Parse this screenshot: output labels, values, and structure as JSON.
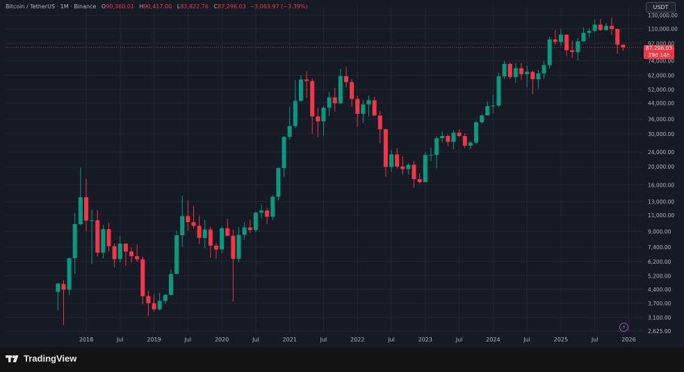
{
  "legend": {
    "title": "Bitcoin / TetherUS · 1M · Binance",
    "open_label": "O",
    "open": "90,360.01",
    "high_label": "H",
    "high": "90,417.00",
    "low_label": "L",
    "low": "83,822.76",
    "close_label": "C",
    "close": "87,296.03",
    "change": "−3,063.97 (−3.39%)"
  },
  "currency": "USDT",
  "price_tag": {
    "price": "87,296.03",
    "countdown": "29d 14h"
  },
  "brand": {
    "name": "TradingView"
  },
  "icons": {
    "flash": "flash-icon",
    "logo": "tradingview-logo-icon"
  },
  "colors": {
    "up": "#089981",
    "down": "#f23645",
    "background": "#161a25",
    "grid": "#232733",
    "text": "#b2b5be"
  },
  "chart_data": {
    "type": "candlestick",
    "scale": "log",
    "ylim": [
      2500,
      145000
    ],
    "grid": true,
    "y_ticks": [
      "130,000.00",
      "110,000.00",
      "92,000.00",
      "74,000.00",
      "62,000.00",
      "52,000.00",
      "44,000.00",
      "36,000.00",
      "30,000.00",
      "24,000.00",
      "20,000.00",
      "16,000.00",
      "13,000.00",
      "11,000.00",
      "9,000.00",
      "7,400.00",
      "6,200.00",
      "5,200.00",
      "4,400.00",
      "3,700.00",
      "3,100.00",
      "2,625.00"
    ],
    "x_ticks": [
      "2018",
      "Jul",
      "2019",
      "Jul",
      "2020",
      "Jul",
      "2021",
      "Jul",
      "2022",
      "Jul",
      "2023",
      "Jul",
      "2024",
      "Jul",
      "2025",
      "Jul",
      "2026"
    ],
    "last_price": 87296.03,
    "candles": [
      {
        "t": "2017-08",
        "o": 4261,
        "h": 4745,
        "l": 3400,
        "c": 4724
      },
      {
        "t": "2017-09",
        "o": 4690,
        "h": 4940,
        "l": 2817,
        "c": 4378
      },
      {
        "t": "2017-10",
        "o": 4378,
        "h": 6470,
        "l": 4110,
        "c": 6463
      },
      {
        "t": "2017-11",
        "o": 6463,
        "h": 11300,
        "l": 5325,
        "c": 9838
      },
      {
        "t": "2017-12",
        "o": 9838,
        "h": 19798,
        "l": 9722,
        "c": 13716
      },
      {
        "t": "2018-01",
        "o": 13716,
        "h": 17176,
        "l": 9035,
        "c": 10285
      },
      {
        "t": "2018-02",
        "o": 10285,
        "h": 11786,
        "l": 6000,
        "c": 10326
      },
      {
        "t": "2018-03",
        "o": 10326,
        "h": 11690,
        "l": 6600,
        "c": 6923
      },
      {
        "t": "2018-04",
        "o": 6923,
        "h": 9759,
        "l": 6430,
        "c": 9246
      },
      {
        "t": "2018-05",
        "o": 9246,
        "h": 10020,
        "l": 7032,
        "c": 7494
      },
      {
        "t": "2018-06",
        "o": 7494,
        "h": 7760,
        "l": 5755,
        "c": 6391
      },
      {
        "t": "2018-07",
        "o": 6391,
        "h": 8507,
        "l": 6111,
        "c": 7730
      },
      {
        "t": "2018-08",
        "o": 7730,
        "h": 7770,
        "l": 5880,
        "c": 7011
      },
      {
        "t": "2018-09",
        "o": 7011,
        "h": 7410,
        "l": 6100,
        "c": 6626
      },
      {
        "t": "2018-10",
        "o": 6626,
        "h": 7680,
        "l": 6180,
        "c": 6371
      },
      {
        "t": "2018-11",
        "o": 6371,
        "h": 6560,
        "l": 3652,
        "c": 4041
      },
      {
        "t": "2018-12",
        "o": 4041,
        "h": 4312,
        "l": 3156,
        "c": 3702
      },
      {
        "t": "2019-01",
        "o": 3702,
        "h": 4143,
        "l": 3349,
        "c": 3434
      },
      {
        "t": "2019-02",
        "o": 3434,
        "h": 4198,
        "l": 3373,
        "c": 3813
      },
      {
        "t": "2019-03",
        "o": 3813,
        "h": 4140,
        "l": 3670,
        "c": 4105
      },
      {
        "t": "2019-04",
        "o": 4105,
        "h": 5600,
        "l": 4070,
        "c": 5320
      },
      {
        "t": "2019-05",
        "o": 5320,
        "h": 9074,
        "l": 5300,
        "c": 8574
      },
      {
        "t": "2019-06",
        "o": 8574,
        "h": 13970,
        "l": 7440,
        "c": 10854
      },
      {
        "t": "2019-07",
        "o": 10854,
        "h": 13183,
        "l": 9071,
        "c": 10085
      },
      {
        "t": "2019-08",
        "o": 10085,
        "h": 12325,
        "l": 9320,
        "c": 9630
      },
      {
        "t": "2019-09",
        "o": 9630,
        "h": 10905,
        "l": 7710,
        "c": 8293
      },
      {
        "t": "2019-10",
        "o": 8293,
        "h": 10370,
        "l": 7300,
        "c": 9199
      },
      {
        "t": "2019-11",
        "o": 9199,
        "h": 9505,
        "l": 6515,
        "c": 7546
      },
      {
        "t": "2019-12",
        "o": 7546,
        "h": 7750,
        "l": 6435,
        "c": 7195
      },
      {
        "t": "2020-01",
        "o": 7195,
        "h": 9578,
        "l": 6871,
        "c": 9352
      },
      {
        "t": "2020-02",
        "o": 9352,
        "h": 10500,
        "l": 8445,
        "c": 8523
      },
      {
        "t": "2020-03",
        "o": 8523,
        "h": 9189,
        "l": 3782,
        "c": 6411
      },
      {
        "t": "2020-04",
        "o": 6411,
        "h": 9460,
        "l": 6150,
        "c": 8620
      },
      {
        "t": "2020-05",
        "o": 8620,
        "h": 10067,
        "l": 8107,
        "c": 9449
      },
      {
        "t": "2020-06",
        "o": 9449,
        "h": 10380,
        "l": 8833,
        "c": 9138
      },
      {
        "t": "2020-07",
        "o": 9138,
        "h": 11444,
        "l": 8893,
        "c": 11335
      },
      {
        "t": "2020-08",
        "o": 11335,
        "h": 12468,
        "l": 10518,
        "c": 11649
      },
      {
        "t": "2020-09",
        "o": 11649,
        "h": 12050,
        "l": 9825,
        "c": 10776
      },
      {
        "t": "2020-10",
        "o": 10776,
        "h": 14100,
        "l": 10374,
        "c": 13791
      },
      {
        "t": "2020-11",
        "o": 13791,
        "h": 19863,
        "l": 13195,
        "c": 19695
      },
      {
        "t": "2020-12",
        "o": 19695,
        "h": 29300,
        "l": 17572,
        "c": 28923
      },
      {
        "t": "2021-01",
        "o": 28923,
        "h": 41950,
        "l": 28130,
        "c": 33092
      },
      {
        "t": "2021-02",
        "o": 33092,
        "h": 58352,
        "l": 32296,
        "c": 45135
      },
      {
        "t": "2021-03",
        "o": 45135,
        "h": 61844,
        "l": 44950,
        "c": 58740
      },
      {
        "t": "2021-04",
        "o": 58740,
        "h": 64854,
        "l": 46930,
        "c": 57694
      },
      {
        "t": "2021-05",
        "o": 57694,
        "h": 59500,
        "l": 30000,
        "c": 37254
      },
      {
        "t": "2021-06",
        "o": 37254,
        "h": 41330,
        "l": 28805,
        "c": 35045
      },
      {
        "t": "2021-07",
        "o": 35045,
        "h": 42448,
        "l": 29278,
        "c": 41461
      },
      {
        "t": "2021-08",
        "o": 41461,
        "h": 50500,
        "l": 37332,
        "c": 47100
      },
      {
        "t": "2021-09",
        "o": 47100,
        "h": 52920,
        "l": 39600,
        "c": 43824
      },
      {
        "t": "2021-10",
        "o": 43824,
        "h": 67000,
        "l": 43283,
        "c": 61299
      },
      {
        "t": "2021-11",
        "o": 61299,
        "h": 69000,
        "l": 53256,
        "c": 56950
      },
      {
        "t": "2021-12",
        "o": 56950,
        "h": 59053,
        "l": 42000,
        "c": 46217
      },
      {
        "t": "2022-01",
        "o": 46217,
        "h": 47990,
        "l": 32917,
        "c": 38466
      },
      {
        "t": "2022-02",
        "o": 38466,
        "h": 45821,
        "l": 34322,
        "c": 43160
      },
      {
        "t": "2022-03",
        "o": 43160,
        "h": 48190,
        "l": 37155,
        "c": 45510
      },
      {
        "t": "2022-04",
        "o": 45510,
        "h": 47444,
        "l": 37578,
        "c": 37630
      },
      {
        "t": "2022-05",
        "o": 37630,
        "h": 39845,
        "l": 26700,
        "c": 31801
      },
      {
        "t": "2022-06",
        "o": 31801,
        "h": 31982,
        "l": 17622,
        "c": 19942
      },
      {
        "t": "2022-07",
        "o": 19942,
        "h": 24668,
        "l": 18782,
        "c": 23293
      },
      {
        "t": "2022-08",
        "o": 23293,
        "h": 25212,
        "l": 19520,
        "c": 20050
      },
      {
        "t": "2022-09",
        "o": 20050,
        "h": 22799,
        "l": 18125,
        "c": 19423
      },
      {
        "t": "2022-10",
        "o": 19423,
        "h": 20988,
        "l": 18190,
        "c": 20490
      },
      {
        "t": "2022-11",
        "o": 20490,
        "h": 21480,
        "l": 15476,
        "c": 17164
      },
      {
        "t": "2022-12",
        "o": 17164,
        "h": 18387,
        "l": 16256,
        "c": 16542
      },
      {
        "t": "2023-01",
        "o": 16542,
        "h": 23960,
        "l": 16500,
        "c": 23125
      },
      {
        "t": "2023-02",
        "o": 23125,
        "h": 25250,
        "l": 21351,
        "c": 23141
      },
      {
        "t": "2023-03",
        "o": 23141,
        "h": 29184,
        "l": 19549,
        "c": 28465
      },
      {
        "t": "2023-04",
        "o": 28465,
        "h": 31000,
        "l": 26942,
        "c": 29233
      },
      {
        "t": "2023-05",
        "o": 29233,
        "h": 29820,
        "l": 25811,
        "c": 27210
      },
      {
        "t": "2023-06",
        "o": 27210,
        "h": 31431,
        "l": 24800,
        "c": 30472
      },
      {
        "t": "2023-07",
        "o": 30472,
        "h": 31804,
        "l": 28861,
        "c": 29232
      },
      {
        "t": "2023-08",
        "o": 29232,
        "h": 30244,
        "l": 25166,
        "c": 25941
      },
      {
        "t": "2023-09",
        "o": 25941,
        "h": 27483,
        "l": 24901,
        "c": 26963
      },
      {
        "t": "2023-10",
        "o": 26963,
        "h": 35198,
        "l": 26538,
        "c": 34640
      },
      {
        "t": "2023-11",
        "o": 34640,
        "h": 38450,
        "l": 34097,
        "c": 37723
      },
      {
        "t": "2023-12",
        "o": 37723,
        "h": 44700,
        "l": 37615,
        "c": 42283
      },
      {
        "t": "2024-01",
        "o": 42283,
        "h": 48969,
        "l": 38555,
        "c": 42582
      },
      {
        "t": "2024-02",
        "o": 42582,
        "h": 64000,
        "l": 41885,
        "c": 61130
      },
      {
        "t": "2024-03",
        "o": 61130,
        "h": 73777,
        "l": 59005,
        "c": 71280
      },
      {
        "t": "2024-04",
        "o": 71280,
        "h": 72797,
        "l": 59191,
        "c": 60672
      },
      {
        "t": "2024-05",
        "o": 60672,
        "h": 71979,
        "l": 56552,
        "c": 67540
      },
      {
        "t": "2024-06",
        "o": 67540,
        "h": 71997,
        "l": 58402,
        "c": 62772
      },
      {
        "t": "2024-07",
        "o": 62772,
        "h": 70079,
        "l": 53485,
        "c": 64628
      },
      {
        "t": "2024-08",
        "o": 64628,
        "h": 65659,
        "l": 49000,
        "c": 58974
      },
      {
        "t": "2024-09",
        "o": 58974,
        "h": 66498,
        "l": 52550,
        "c": 63328
      },
      {
        "t": "2024-10",
        "o": 63328,
        "h": 73620,
        "l": 58946,
        "c": 70215
      },
      {
        "t": "2024-11",
        "o": 70215,
        "h": 99588,
        "l": 66835,
        "c": 96407
      },
      {
        "t": "2024-12",
        "o": 96407,
        "h": 108353,
        "l": 90500,
        "c": 93576
      },
      {
        "t": "2025-01",
        "o": 93576,
        "h": 109588,
        "l": 89256,
        "c": 102429
      },
      {
        "t": "2025-02",
        "o": 102429,
        "h": 102500,
        "l": 78258,
        "c": 84349
      },
      {
        "t": "2025-03",
        "o": 84349,
        "h": 95000,
        "l": 76606,
        "c": 82548
      },
      {
        "t": "2025-04",
        "o": 82548,
        "h": 97900,
        "l": 74508,
        "c": 94172
      },
      {
        "t": "2025-05",
        "o": 94172,
        "h": 111980,
        "l": 93377,
        "c": 104591
      },
      {
        "t": "2025-06",
        "o": 104591,
        "h": 110530,
        "l": 98200,
        "c": 107135
      },
      {
        "t": "2025-07",
        "o": 107135,
        "h": 123218,
        "l": 105100,
        "c": 115764
      },
      {
        "t": "2025-08",
        "o": 115764,
        "h": 124474,
        "l": 107350,
        "c": 108246
      },
      {
        "t": "2025-09",
        "o": 108246,
        "h": 117900,
        "l": 107255,
        "c": 114049
      },
      {
        "t": "2025-10",
        "o": 114049,
        "h": 126200,
        "l": 102000,
        "c": 109608
      },
      {
        "t": "2025-11",
        "o": 109608,
        "h": 110600,
        "l": 80600,
        "c": 90360
      },
      {
        "t": "2025-12",
        "o": 90360.01,
        "h": 90417,
        "l": 83822.76,
        "c": 87296.03
      }
    ]
  }
}
